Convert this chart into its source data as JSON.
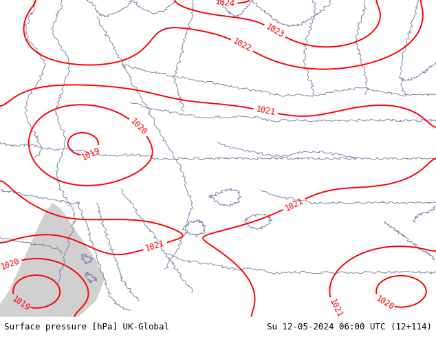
{
  "title_left": "Surface pressure [hPa] UK-Global",
  "title_right": "Su 12-05-2024 06:00 UTC (12+114)",
  "bg_green": "#b5e870",
  "sea_color": "#d0d0d0",
  "border_color": "#8888aa",
  "contour_color": "#ff0000",
  "contour_linewidth": 1.4,
  "label_fontsize": 8.5,
  "footer_fontsize": 9,
  "footer_bg": "#ffffff",
  "figsize": [
    6.34,
    4.9
  ],
  "dpi": 100
}
